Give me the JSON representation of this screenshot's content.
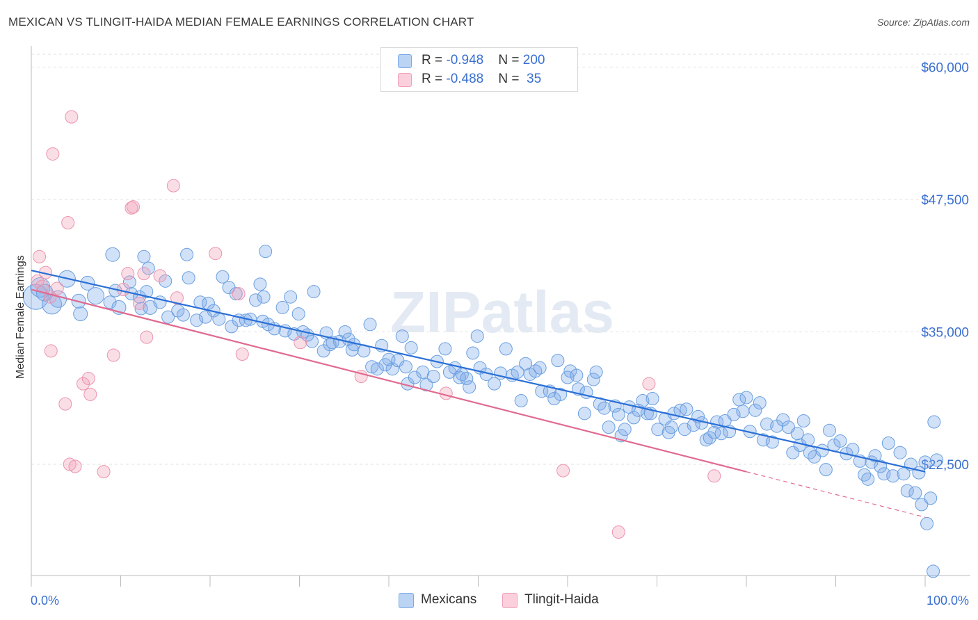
{
  "title": "MEXICAN VS TLINGIT-HAIDA MEDIAN FEMALE EARNINGS CORRELATION CHART",
  "source": "Source: ZipAtlas.com",
  "watermark": "ZIPatlas",
  "legend": {
    "rows": [
      {
        "name": "Mexicans",
        "r_label": "R = ",
        "r_value": "-0.948",
        "n_label": "N = ",
        "n_value": "200",
        "color": "#7aaae8"
      },
      {
        "name": "Tlingit-Haida",
        "r_label": "R = ",
        "r_value": "-0.488",
        "n_label": "N = ",
        "n_value": " 35",
        "color": "#f2a0b8"
      }
    ]
  },
  "bottom_legend": [
    {
      "label": "Mexicans",
      "color": "#7aaae8"
    },
    {
      "label": "Tlingit-Haida",
      "color": "#f2a0b8"
    }
  ],
  "chart_data": {
    "type": "scatter",
    "title": "MEXICAN VS TLINGIT-HAIDA MEDIAN FEMALE EARNINGS CORRELATION CHART",
    "xlabel": "",
    "ylabel": "Median Female Earnings",
    "xlim": [
      0,
      100
    ],
    "ylim": [
      12000,
      62000
    ],
    "x_tick_labels": [
      "0.0%",
      "100.0%"
    ],
    "y_ticks": [
      22500,
      35000,
      47500,
      60000
    ],
    "y_tick_labels": [
      "$22,500",
      "$35,000",
      "$47,500",
      "$60,000"
    ],
    "series": [
      {
        "name": "Mexicans",
        "color": "#6a9fe0",
        "line_color": "#2a6fd6",
        "trend": {
          "x0": 0,
          "y0": 40800,
          "x1": 100,
          "y1": 21800,
          "dashed_from": null
        },
        "points": [
          [
            0.5,
            38300,
            18
          ],
          [
            1,
            39200,
            14
          ],
          [
            1.5,
            38700,
            12
          ],
          [
            2.3,
            37600,
            14
          ],
          [
            3,
            38100,
            12
          ],
          [
            4,
            40000,
            12
          ],
          [
            5.3,
            37900,
            10
          ],
          [
            5.5,
            36700,
            10
          ],
          [
            6.3,
            39600,
            10
          ],
          [
            7.2,
            38400,
            12
          ],
          [
            8.8,
            37800,
            9
          ],
          [
            9.1,
            42300,
            10
          ],
          [
            9.4,
            38900,
            9
          ],
          [
            9.8,
            37300,
            10
          ],
          [
            11,
            39700,
            9
          ],
          [
            11.2,
            38600,
            9
          ],
          [
            12.1,
            38300,
            9
          ],
          [
            12.3,
            37200,
            9
          ],
          [
            12.6,
            42100,
            9
          ],
          [
            12.9,
            38800,
            9
          ],
          [
            13.1,
            41000,
            9
          ],
          [
            13.3,
            37300,
            10
          ],
          [
            14.4,
            37800,
            9
          ],
          [
            15,
            39800,
            9
          ],
          [
            15.3,
            36400,
            9
          ],
          [
            16.4,
            37000,
            9
          ],
          [
            17,
            36600,
            9
          ],
          [
            17.4,
            42300,
            9
          ],
          [
            17.6,
            40100,
            9
          ],
          [
            18.5,
            36100,
            9
          ],
          [
            18.9,
            37800,
            9
          ],
          [
            19.5,
            36400,
            9
          ],
          [
            19.8,
            37700,
            9
          ],
          [
            20.4,
            37000,
            9
          ],
          [
            21,
            36200,
            9
          ],
          [
            21.4,
            40200,
            9
          ],
          [
            22.1,
            39200,
            9
          ],
          [
            22.4,
            35500,
            9
          ],
          [
            22.9,
            38600,
            9
          ],
          [
            23.2,
            36100,
            9
          ],
          [
            24,
            36100,
            9
          ],
          [
            24.5,
            36200,
            9
          ],
          [
            25.1,
            38000,
            9
          ],
          [
            25.6,
            39500,
            9
          ],
          [
            25.9,
            36000,
            9
          ],
          [
            26,
            38300,
            9
          ],
          [
            26.2,
            42600,
            9
          ],
          [
            26.5,
            35700,
            9
          ],
          [
            27.2,
            35300,
            9
          ],
          [
            28.1,
            37300,
            9
          ],
          [
            28.4,
            35100,
            9
          ],
          [
            29,
            38300,
            9
          ],
          [
            29.4,
            34800,
            9
          ],
          [
            29.9,
            36700,
            9
          ],
          [
            30.4,
            35000,
            9
          ],
          [
            30.9,
            34700,
            9
          ],
          [
            31.4,
            34100,
            9
          ],
          [
            31.6,
            38800,
            9
          ],
          [
            32.7,
            33200,
            9
          ],
          [
            33,
            34900,
            9
          ],
          [
            33.4,
            33800,
            9
          ],
          [
            33.7,
            34000,
            9
          ],
          [
            34.5,
            34100,
            9
          ],
          [
            35.1,
            35000,
            9
          ],
          [
            35.5,
            34300,
            9
          ],
          [
            35.9,
            33300,
            9
          ],
          [
            36.1,
            33800,
            9
          ],
          [
            37.2,
            33200,
            9
          ],
          [
            37.9,
            35700,
            9
          ],
          [
            38.1,
            31700,
            9
          ],
          [
            38.7,
            31500,
            9
          ],
          [
            39.2,
            33700,
            9
          ],
          [
            39.6,
            31900,
            9
          ],
          [
            40,
            32400,
            9
          ],
          [
            40.4,
            31500,
            9
          ],
          [
            41,
            32300,
            9
          ],
          [
            41.5,
            34600,
            9
          ],
          [
            41.9,
            31700,
            9
          ],
          [
            42.1,
            30100,
            9
          ],
          [
            42.5,
            33500,
            9
          ],
          [
            42.9,
            30700,
            9
          ],
          [
            43.8,
            31200,
            9
          ],
          [
            44.2,
            30000,
            9
          ],
          [
            45,
            30800,
            9
          ],
          [
            45.4,
            32200,
            9
          ],
          [
            46.3,
            33400,
            9
          ],
          [
            46.8,
            31200,
            9
          ],
          [
            47.4,
            31600,
            9
          ],
          [
            47.9,
            30700,
            9
          ],
          [
            48.2,
            31000,
            9
          ],
          [
            48.7,
            30600,
            9
          ],
          [
            49,
            29800,
            9
          ],
          [
            49.4,
            33000,
            9
          ],
          [
            49.9,
            34600,
            9
          ],
          [
            50.2,
            31600,
            9
          ],
          [
            50.9,
            31000,
            9
          ],
          [
            51.8,
            30100,
            9
          ],
          [
            52.5,
            31100,
            9
          ],
          [
            53.1,
            33400,
            9
          ],
          [
            53.8,
            30900,
            9
          ],
          [
            54.4,
            31200,
            9
          ],
          [
            54.8,
            28500,
            9
          ],
          [
            55.3,
            32000,
            9
          ],
          [
            55.8,
            31000,
            9
          ],
          [
            56.4,
            31300,
            9
          ],
          [
            56.9,
            31600,
            9
          ],
          [
            57.1,
            29400,
            9
          ],
          [
            58,
            29400,
            9
          ],
          [
            58.5,
            28700,
            9
          ],
          [
            58.9,
            32300,
            9
          ],
          [
            59.2,
            29100,
            9
          ],
          [
            60,
            30700,
            9
          ],
          [
            60.3,
            31300,
            9
          ],
          [
            61,
            30900,
            9
          ],
          [
            61.2,
            29600,
            9
          ],
          [
            61.9,
            27300,
            9
          ],
          [
            62.1,
            29300,
            9
          ],
          [
            62.9,
            30500,
            9
          ],
          [
            63.2,
            31200,
            9
          ],
          [
            63.6,
            28200,
            9
          ],
          [
            64.1,
            27800,
            9
          ],
          [
            64.6,
            26000,
            9
          ],
          [
            65.3,
            28000,
            9
          ],
          [
            65.7,
            27200,
            9
          ],
          [
            66,
            25200,
            9
          ],
          [
            66.4,
            25800,
            9
          ],
          [
            66.9,
            27900,
            9
          ],
          [
            67.4,
            26900,
            9
          ],
          [
            67.9,
            27600,
            9
          ],
          [
            68.4,
            28500,
            9
          ],
          [
            68.9,
            27300,
            9
          ],
          [
            69.3,
            27300,
            9
          ],
          [
            69.5,
            28700,
            9
          ],
          [
            70.1,
            25800,
            9
          ],
          [
            70.9,
            26800,
            9
          ],
          [
            71.3,
            25500,
            9
          ],
          [
            71.6,
            26000,
            9
          ],
          [
            71.9,
            27300,
            9
          ],
          [
            72.6,
            27600,
            9
          ],
          [
            73.1,
            25800,
            9
          ],
          [
            73.3,
            27700,
            9
          ],
          [
            74.1,
            26200,
            9
          ],
          [
            74.6,
            27000,
            9
          ],
          [
            75,
            26400,
            9
          ],
          [
            75.5,
            24800,
            9
          ],
          [
            75.9,
            25000,
            9
          ],
          [
            76.4,
            25500,
            9
          ],
          [
            76.7,
            26500,
            9
          ],
          [
            77.2,
            25400,
            9
          ],
          [
            77.6,
            26600,
            9
          ],
          [
            78.1,
            25600,
            9
          ],
          [
            78.6,
            27200,
            9
          ],
          [
            79.2,
            28600,
            9
          ],
          [
            79.6,
            27500,
            9
          ],
          [
            80,
            28800,
            9
          ],
          [
            80.4,
            25600,
            9
          ],
          [
            81,
            27600,
            9
          ],
          [
            81.5,
            28300,
            9
          ],
          [
            81.9,
            24800,
            9
          ],
          [
            82.3,
            26300,
            9
          ],
          [
            82.9,
            24600,
            9
          ],
          [
            83.4,
            26100,
            9
          ],
          [
            84.1,
            26700,
            9
          ],
          [
            84.7,
            26000,
            9
          ],
          [
            85.2,
            23600,
            9
          ],
          [
            85.7,
            25400,
            9
          ],
          [
            86,
            24300,
            9
          ],
          [
            86.4,
            26600,
            9
          ],
          [
            86.9,
            24800,
            9
          ],
          [
            87.1,
            23600,
            9
          ],
          [
            87.6,
            23200,
            9
          ],
          [
            88.5,
            23800,
            9
          ],
          [
            88.9,
            22000,
            9
          ],
          [
            89.3,
            25700,
            9
          ],
          [
            89.8,
            24300,
            9
          ],
          [
            90.5,
            24700,
            9
          ],
          [
            91.2,
            23500,
            9
          ],
          [
            91.9,
            23900,
            9
          ],
          [
            92.7,
            22800,
            9
          ],
          [
            93.2,
            21500,
            9
          ],
          [
            93.6,
            21100,
            9
          ],
          [
            94,
            22700,
            9
          ],
          [
            94.4,
            23300,
            9
          ],
          [
            95,
            22300,
            9
          ],
          [
            95.4,
            21600,
            9
          ],
          [
            95.9,
            24500,
            9
          ],
          [
            96.4,
            21400,
            9
          ],
          [
            97.2,
            23600,
            9
          ],
          [
            97.6,
            21600,
            9
          ],
          [
            98,
            20000,
            9
          ],
          [
            98.4,
            22500,
            9
          ],
          [
            98.9,
            19800,
            9
          ],
          [
            99.3,
            21700,
            9
          ],
          [
            99.6,
            18700,
            9
          ],
          [
            100,
            22700,
            9
          ],
          [
            100.2,
            16900,
            9
          ],
          [
            100.6,
            19300,
            9
          ],
          [
            101,
            26500,
            9
          ],
          [
            101.3,
            22900,
            9
          ],
          [
            100.9,
            12400,
            9
          ]
        ]
      },
      {
        "name": "Tlingit-Haida",
        "color": "#f2a0b8",
        "line_color": "#e06a90",
        "trend": {
          "x0": 0,
          "y0": 39000,
          "x1": 100,
          "y1": 17500,
          "dashed_from": 80
        },
        "points": [
          [
            0.7,
            39800,
            9
          ],
          [
            0.9,
            42100,
            9
          ],
          [
            1.2,
            39300,
            9
          ],
          [
            1.6,
            40600,
            9
          ],
          [
            2.1,
            38300,
            9
          ],
          [
            2.2,
            33200,
            9
          ],
          [
            2.4,
            51800,
            9
          ],
          [
            2.9,
            39100,
            9
          ],
          [
            3.8,
            28200,
            9
          ],
          [
            4.1,
            45300,
            9
          ],
          [
            4.3,
            22500,
            9
          ],
          [
            4.5,
            55300,
            9
          ],
          [
            4.9,
            22300,
            9
          ],
          [
            5.8,
            30100,
            9
          ],
          [
            6.4,
            30600,
            9
          ],
          [
            6.6,
            29100,
            9
          ],
          [
            8.1,
            21800,
            9
          ],
          [
            9.2,
            32800,
            9
          ],
          [
            10.3,
            39000,
            9
          ],
          [
            10.8,
            40500,
            9
          ],
          [
            11.2,
            46700,
            9
          ],
          [
            11.4,
            46800,
            9
          ],
          [
            12.1,
            37700,
            9
          ],
          [
            12.6,
            40500,
            9
          ],
          [
            12.9,
            34500,
            9
          ],
          [
            14.4,
            40300,
            9
          ],
          [
            15.9,
            48800,
            9
          ],
          [
            16.3,
            38200,
            9
          ],
          [
            20.6,
            42400,
            9
          ],
          [
            23.2,
            38600,
            9
          ],
          [
            23.6,
            32900,
            9
          ],
          [
            30.1,
            34000,
            9
          ],
          [
            36.9,
            30800,
            9
          ],
          [
            46.4,
            29200,
            9
          ],
          [
            59.5,
            21900,
            9
          ],
          [
            65.7,
            16100,
            9
          ],
          [
            69.1,
            30100,
            9
          ],
          [
            76.4,
            21400,
            9
          ]
        ]
      }
    ]
  }
}
